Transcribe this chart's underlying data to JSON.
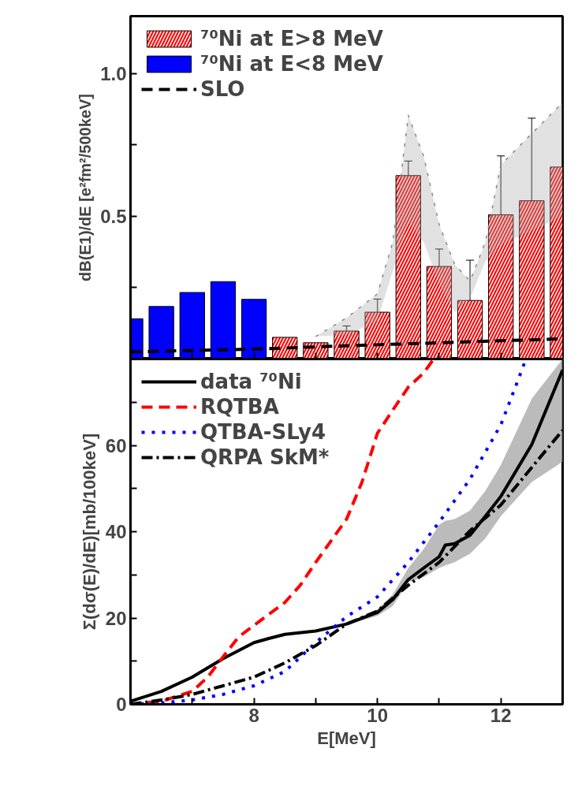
{
  "chart_data": [
    {
      "type": "bar",
      "ylabel": "dB(E1)/dE [e²fm²/500keV]",
      "xlim": [
        6,
        13
      ],
      "xticks": [
        {
          "value": 7,
          "label": null
        },
        {
          "value": 8,
          "label": null
        },
        {
          "value": 9,
          "label": null
        },
        {
          "value": 10,
          "label": null
        },
        {
          "value": 11,
          "label": null
        },
        {
          "value": 12,
          "label": null
        }
      ],
      "ylim": [
        0,
        1.2
      ],
      "yticks": [
        {
          "value": 0.25,
          "label": null
        },
        0.5,
        {
          "value": 0.75,
          "label": null
        },
        {
          "value": 1,
          "label": "1.0"
        }
      ],
      "tick_labels": "y",
      "legend": "top left",
      "grid": false,
      "series": [
        {
          "name": "⁷⁰Ni at E>8 MeV",
          "color": "#ff0000",
          "x": [
            8.5,
            9.0,
            9.5,
            10.0,
            10.5,
            11.0,
            11.5,
            12.0,
            12.5,
            13.0
          ],
          "values": [
            0.076,
            0.057,
            0.098,
            0.164,
            0.642,
            0.324,
            0.205,
            0.505,
            0.554,
            0.672
          ],
          "errors": [
            null,
            null,
            0.018,
            [
              0.121,
              0.21
            ],
            [
              0.589,
              0.693
            ],
            [
              0.265,
              0.385
            ],
            [
              0.068,
              0.346
            ],
            [
              0.301,
              0.711
            ],
            [
              0.265,
              0.843
            ],
            null
          ]
        },
        {
          "name": "⁷⁰Ni at E<8 MeV",
          "color": "#0000ff",
          "x": [
            6.0,
            6.5,
            7.0,
            7.5,
            8.0
          ],
          "values": [
            0.141,
            0.184,
            0.233,
            0.271,
            0.209
          ]
        },
        {
          "name": "SLO",
          "type": "line",
          "line_style": "dashed",
          "color": "#000000",
          "x": [
            6.0,
            8.0,
            10.0,
            12.0,
            13.0
          ],
          "values": [
            0.025,
            0.035,
            0.05,
            0.064,
            0.071
          ]
        },
        {
          "type": "line",
          "color": "#888888",
          "line_style": "dotted",
          "x": [
            9.0,
            9.5,
            10.0,
            10.25,
            10.5,
            10.75,
            11.0,
            11.25,
            11.5,
            11.75,
            12.0,
            12.5,
            13.0
          ],
          "values": [
            0.079,
            0.144,
            0.228,
            0.41,
            0.853,
            0.709,
            0.471,
            0.332,
            0.273,
            0.41,
            0.68,
            0.789,
            0.898
          ],
          "lower": [
            0.079,
            0.084,
            0.134,
            0.31,
            0.48,
            0.41,
            0.263,
            0.164,
            0.213,
            0.342,
            0.4,
            0.45,
            0.5
          ],
          "upper": [
            0.079,
            0.144,
            0.228,
            0.41,
            0.853,
            0.709,
            0.471,
            0.332,
            0.273,
            0.41,
            0.68,
            0.789,
            0.898
          ]
        }
      ]
    },
    {
      "type": "line",
      "xlabel": "E[MeV]",
      "ylabel": "Σ(dσ(E)/dE)[mb/100keV]",
      "xlim": [
        6,
        13
      ],
      "xticks": [
        {
          "value": 7,
          "label": null
        },
        8,
        {
          "value": 9,
          "label": null
        },
        10,
        {
          "value": 11,
          "label": null
        },
        12
      ],
      "ylim": [
        0,
        80
      ],
      "yticks": [
        0,
        {
          "value": 10,
          "label": null
        },
        20,
        {
          "value": 30,
          "label": null
        },
        40,
        {
          "value": 50,
          "label": null
        },
        60,
        {
          "value": 70,
          "label": null
        }
      ],
      "legend": "top left",
      "grid": false,
      "series": [
        {
          "name": "data ⁷⁰Ni",
          "color": "#000000",
          "line_style": "solid",
          "x": [
            6.0,
            6.5,
            7.0,
            7.5,
            8.0,
            8.25,
            8.5,
            9.0,
            9.5,
            10.0,
            10.25,
            10.5,
            10.75,
            11.0,
            11.1,
            11.25,
            11.5,
            11.75,
            12.0,
            12.5,
            13.0
          ],
          "values": [
            0.7,
            3.0,
            6.3,
            10.6,
            14.3,
            15.3,
            16.2,
            17.0,
            18.6,
            21.3,
            24.3,
            28.9,
            31.6,
            34.2,
            36.9,
            37.2,
            39.2,
            43.6,
            48.2,
            60.2,
            77.5
          ],
          "lower": [
            0.7,
            3.0,
            6.3,
            10.6,
            14.3,
            15.3,
            16.2,
            17.0,
            18.4,
            20.5,
            22.8,
            28.3,
            29.5,
            31.6,
            32.2,
            32.9,
            34.9,
            38.5,
            43.6,
            51.5,
            56.2
          ],
          "upper": [
            0.7,
            3.0,
            6.3,
            10.6,
            14.3,
            15.3,
            16.2,
            17.0,
            18.8,
            22.0,
            25.5,
            31.6,
            36.0,
            41.6,
            42.5,
            42.9,
            44.9,
            49.5,
            55.5,
            70.8,
            80
          ]
        },
        {
          "name": "RQTBA",
          "color": "#ff0000",
          "line_style": "dashed",
          "x": [
            6.0,
            6.5,
            7.0,
            7.25,
            7.5,
            7.75,
            8.0,
            8.5,
            8.75,
            9.0,
            9.5,
            9.75,
            10.0,
            10.25,
            10.5,
            10.75,
            10.9
          ],
          "values": [
            0,
            0.7,
            3.0,
            6.3,
            11,
            15.6,
            18.3,
            23.6,
            27.6,
            32.9,
            42.9,
            51.5,
            62.8,
            68.2,
            73.5,
            76.8,
            79.8
          ]
        },
        {
          "name": "QTBA-SLy4",
          "color": "#0000ff",
          "line_style": "dotted",
          "x": [
            6.0,
            6.5,
            7.0,
            7.5,
            8.0,
            8.5,
            9.0,
            9.5,
            10.0,
            10.5,
            11.0,
            11.5,
            12.0,
            12.25,
            12.4
          ],
          "values": [
            0,
            0.3,
            1,
            2.3,
            4.3,
            7.6,
            14.3,
            20.3,
            24.9,
            32.9,
            42.2,
            52.2,
            64.8,
            74.1,
            79.8
          ]
        },
        {
          "name": "QRPA SkM*",
          "color": "#000000",
          "line_style": "dashdot",
          "x": [
            6.0,
            6.5,
            7.0,
            7.5,
            8.0,
            8.5,
            9.0,
            9.5,
            10.0,
            10.5,
            11.0,
            11.5,
            12.0,
            12.5,
            13.0
          ],
          "values": [
            0,
            1,
            2.3,
            4.3,
            6.3,
            9.6,
            13.6,
            18.6,
            21.6,
            27.6,
            32.9,
            40.2,
            46.2,
            54.9,
            63.5
          ]
        }
      ]
    }
  ]
}
